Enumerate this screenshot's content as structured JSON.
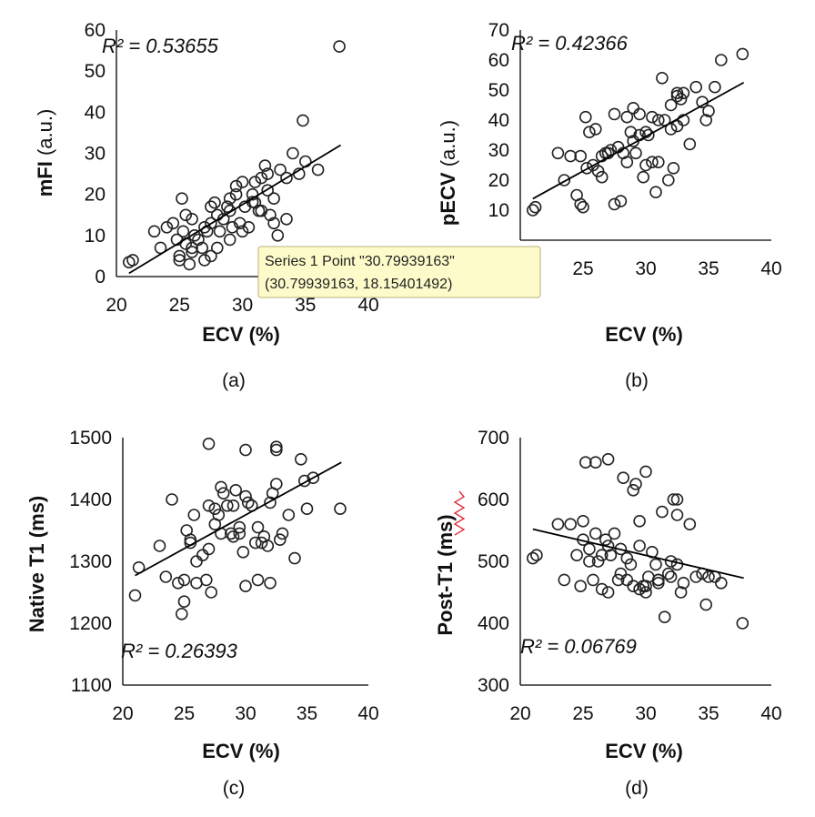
{
  "chart_data": [
    {
      "id": "a",
      "type": "scatter",
      "caption": "(a)",
      "xlabel": "ECV",
      "xunit": "(%)",
      "ylabel": "mFI",
      "yunit": "(a.u.)",
      "xlim": [
        20,
        40
      ],
      "xticks": [
        20,
        25,
        30,
        35,
        40
      ],
      "ylim": [
        0,
        60
      ],
      "yticks": [
        0,
        10,
        20,
        30,
        40,
        50,
        60
      ],
      "r2_text": "R² = 0.53655",
      "trendline": {
        "x": [
          21,
          37.8
        ],
        "y": [
          0.8,
          32
        ]
      },
      "x": [
        21,
        21.3,
        23,
        23.5,
        24,
        24.5,
        24.8,
        25,
        25,
        25.2,
        25.5,
        25.5,
        25.8,
        26,
        26,
        26.2,
        26.5,
        26.8,
        27,
        27,
        27.2,
        27.5,
        27.5,
        27.8,
        28,
        28,
        28.2,
        28.5,
        28.8,
        29,
        29,
        29.2,
        29.5,
        29.5,
        29.8,
        30,
        30,
        30.2,
        30.5,
        30.8,
        31,
        31,
        31.3,
        31.5,
        31.8,
        32,
        32,
        32.2,
        32.5,
        32.5,
        32.8,
        33,
        33.5,
        34,
        34.5,
        34.8,
        35,
        36,
        37.7,
        25.3,
        26,
        27.5,
        29,
        31.5,
        33.5,
        30.8
      ],
      "y": [
        3.5,
        4,
        11,
        7,
        12,
        13,
        9,
        5,
        4,
        19,
        15,
        8,
        3,
        14,
        7,
        10,
        9,
        7,
        4,
        12,
        11,
        17,
        5,
        18,
        15,
        7,
        11,
        14,
        17,
        16,
        9,
        12,
        22,
        20,
        13,
        11,
        23,
        17,
        12,
        20,
        23,
        18,
        16,
        24,
        27,
        25,
        21,
        15,
        19,
        13,
        10,
        26,
        14,
        30,
        25,
        38,
        28,
        26,
        56,
        11,
        6,
        13,
        19,
        16,
        24,
        18.15
      ]
    },
    {
      "id": "b",
      "type": "scatter",
      "caption": "(b)",
      "xlabel": "ECV",
      "xunit": "(%)",
      "ylabel": "pECV",
      "yunit": "(a.u.)",
      "xlim": [
        20,
        40
      ],
      "xticks": [
        20,
        25,
        30,
        35,
        40
      ],
      "ylim": [
        0,
        70
      ],
      "yticks": [
        10,
        20,
        30,
        40,
        50,
        60,
        70
      ],
      "r2_text": "R² = 0.42366",
      "trendline": {
        "x": [
          21,
          37.8
        ],
        "y": [
          13.8,
          52.5
        ]
      },
      "x": [
        21,
        21.2,
        23,
        23.5,
        24,
        24.5,
        24.8,
        25,
        25.2,
        25.5,
        25.8,
        26,
        26.2,
        26.5,
        26.8,
        27,
        27.2,
        27.5,
        27.5,
        27.8,
        28,
        28.2,
        28.5,
        28.8,
        29,
        29,
        29.2,
        29.5,
        29.5,
        29.8,
        30,
        30,
        30.2,
        30.5,
        30.8,
        31,
        31,
        31.3,
        31.5,
        31.8,
        32,
        32,
        32.2,
        32.5,
        32.5,
        32.8,
        33,
        33.5,
        34,
        34.5,
        34.8,
        35,
        35.5,
        36,
        37.7,
        24.8,
        25.3,
        26.5,
        28.5,
        30.5,
        32.5,
        33
      ],
      "y": [
        10,
        11,
        29,
        20,
        28,
        15,
        12,
        11,
        41,
        36,
        25,
        37,
        23,
        28,
        29,
        29,
        30,
        12,
        42,
        31,
        13,
        29,
        26,
        36,
        33,
        44,
        29,
        42,
        35,
        21,
        25,
        36,
        35,
        41,
        16,
        26,
        40,
        54,
        40,
        20,
        37,
        45,
        24,
        38,
        49,
        47,
        40,
        32,
        51,
        46,
        40,
        43,
        51,
        60,
        62,
        28,
        24,
        21,
        41,
        26,
        48,
        49
      ]
    },
    {
      "id": "c",
      "type": "scatter",
      "caption": "(c)",
      "xlabel": "ECV",
      "xunit": "(%)",
      "ylabel": "Native T1",
      "yunit": "(ms)",
      "xlim": [
        20,
        40
      ],
      "xticks": [
        20,
        25,
        30,
        35,
        40
      ],
      "ylim": [
        1100,
        1500
      ],
      "yticks": [
        1100,
        1200,
        1300,
        1400,
        1500
      ],
      "r2_text": "R² = 0.26393",
      "trendline": {
        "x": [
          21,
          37.8
        ],
        "y": [
          1277,
          1460
        ]
      },
      "x": [
        21,
        21.3,
        23,
        23.5,
        24,
        24.5,
        24.8,
        25,
        25,
        25.2,
        25.5,
        25.5,
        25.8,
        26,
        26,
        26.5,
        26.8,
        27,
        27,
        27.2,
        27.5,
        27.5,
        27.8,
        28,
        28,
        28.2,
        28.5,
        28.8,
        29,
        29,
        29.2,
        29.5,
        29.5,
        29.8,
        30,
        30,
        30.2,
        30.5,
        30.8,
        31,
        31,
        31.3,
        31.5,
        31.8,
        32,
        32,
        32.2,
        32.5,
        32.5,
        32.8,
        33,
        33.5,
        34,
        34.5,
        34.8,
        35,
        35.5,
        37.7,
        27,
        30,
        32.5
      ],
      "y": [
        1245,
        1290,
        1325,
        1275,
        1400,
        1265,
        1215,
        1235,
        1270,
        1350,
        1330,
        1335,
        1375,
        1265,
        1300,
        1310,
        1270,
        1390,
        1320,
        1250,
        1385,
        1360,
        1375,
        1345,
        1420,
        1410,
        1390,
        1345,
        1340,
        1390,
        1415,
        1355,
        1345,
        1315,
        1405,
        1260,
        1395,
        1390,
        1330,
        1355,
        1270,
        1330,
        1340,
        1325,
        1395,
        1265,
        1410,
        1485,
        1425,
        1335,
        1345,
        1375,
        1305,
        1465,
        1430,
        1385,
        1435,
        1385,
        1490,
        1480,
        1480
      ]
    },
    {
      "id": "d",
      "type": "scatter",
      "caption": "(d)",
      "xlabel": "ECV",
      "xunit": "(%)",
      "ylabel": "Post-T1",
      "yunit": "(ms)",
      "xlim": [
        20,
        40
      ],
      "xticks": [
        20,
        25,
        30,
        35,
        40
      ],
      "ylim": [
        300,
        700
      ],
      "yticks": [
        300,
        400,
        500,
        600,
        700
      ],
      "r2_text": "R² = 0.06769",
      "trendline": {
        "x": [
          21,
          37.8
        ],
        "y": [
          552,
          473
        ]
      },
      "x": [
        21,
        21.3,
        23,
        23.5,
        24,
        24.5,
        24.8,
        25,
        25,
        25.2,
        25.5,
        25.8,
        26,
        26,
        26.2,
        26.5,
        26.8,
        27,
        27,
        27.2,
        27.5,
        27.8,
        28,
        28,
        28.2,
        28.5,
        28.8,
        29,
        29,
        29.2,
        29.5,
        29.5,
        29.8,
        30,
        30,
        30.2,
        30.5,
        30.8,
        31,
        31,
        31.3,
        31.5,
        31.8,
        32,
        32,
        32.2,
        32.5,
        32.5,
        32.8,
        33,
        33.5,
        34,
        34.5,
        34.8,
        35,
        35.5,
        36,
        37.7,
        25.5,
        26.5,
        27,
        28.5,
        29.5,
        30,
        31,
        32.5
      ],
      "y": [
        505,
        510,
        560,
        470,
        560,
        510,
        460,
        565,
        535,
        660,
        500,
        470,
        545,
        660,
        500,
        455,
        535,
        665,
        450,
        510,
        545,
        470,
        520,
        480,
        635,
        505,
        495,
        615,
        460,
        625,
        565,
        525,
        460,
        645,
        460,
        475,
        515,
        495,
        470,
        465,
        580,
        410,
        480,
        475,
        500,
        600,
        575,
        495,
        450,
        465,
        560,
        475,
        480,
        430,
        475,
        475,
        465,
        400,
        520,
        510,
        525,
        470,
        455,
        450,
        470,
        600
      ]
    }
  ],
  "tooltip": {
    "line1": "Series 1 Point \"30.79939163\"",
    "line2": "(30.79939163, 18.15401492)"
  }
}
